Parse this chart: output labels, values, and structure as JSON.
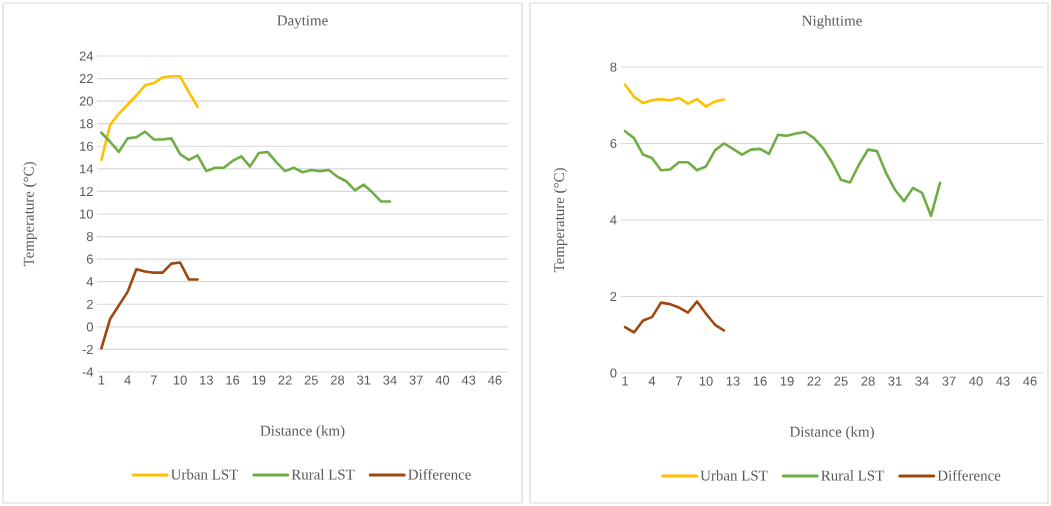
{
  "chart_data": [
    {
      "type": "line",
      "title": "Daytime",
      "xlabel": "Distance (km)",
      "ylabel": "Temperature (°C)",
      "xlim": [
        0.5,
        47.5
      ],
      "xticks": [
        1,
        4,
        7,
        10,
        13,
        16,
        19,
        22,
        25,
        28,
        31,
        34,
        37,
        40,
        43,
        46
      ],
      "ylim": [
        -4,
        24
      ],
      "yticks": [
        -4,
        -2,
        0,
        2,
        4,
        6,
        8,
        10,
        12,
        14,
        16,
        18,
        20,
        22,
        24
      ],
      "grid": "y",
      "legend": "bottom",
      "marker": "none",
      "line_style": "solid",
      "series": [
        {
          "name": "Urban LST",
          "color": "#ffc000",
          "x": [
            1,
            2,
            3,
            4,
            5,
            6,
            7,
            8,
            9,
            10,
            11,
            12
          ],
          "values": [
            14.8,
            17.9,
            18.9,
            19.7,
            20.5,
            21.4,
            21.6,
            22.1,
            22.2,
            22.2,
            20.8,
            19.5
          ]
        },
        {
          "name": "Rural LST",
          "color": "#70ad47",
          "x": [
            1,
            2,
            3,
            4,
            5,
            6,
            7,
            8,
            9,
            10,
            11,
            12,
            13,
            14,
            15,
            16,
            17,
            18,
            19,
            20,
            21,
            22,
            23,
            24,
            25,
            26,
            27,
            28,
            29,
            30,
            31,
            32,
            33,
            34
          ],
          "values": [
            17.2,
            16.4,
            15.5,
            16.7,
            16.8,
            17.3,
            16.6,
            16.6,
            16.7,
            15.3,
            14.8,
            15.2,
            13.8,
            14.1,
            14.1,
            14.7,
            15.1,
            14.2,
            15.4,
            15.5,
            14.6,
            13.8,
            14.1,
            13.7,
            13.9,
            13.8,
            13.9,
            13.3,
            12.9,
            12.1,
            12.6,
            11.9,
            11.1,
            11.1
          ]
        },
        {
          "name": "Difference",
          "color": "#9e480e",
          "x": [
            1,
            2,
            3,
            4,
            5,
            6,
            7,
            8,
            9,
            10,
            11,
            12
          ],
          "values": [
            -1.9,
            0.7,
            1.9,
            3.1,
            5.1,
            4.9,
            4.8,
            4.8,
            5.6,
            5.7,
            4.2,
            4.2
          ]
        }
      ]
    },
    {
      "type": "line",
      "title": "Nighttime",
      "xlabel": "Distance (km)",
      "ylabel": "Temperature (°C)",
      "xlim": [
        0.5,
        47.5
      ],
      "xticks": [
        1,
        4,
        7,
        10,
        13,
        16,
        19,
        22,
        25,
        28,
        31,
        34,
        37,
        40,
        43,
        46
      ],
      "ylim": [
        0,
        8
      ],
      "yticks": [
        0,
        2,
        4,
        6,
        8
      ],
      "grid": "y",
      "legend": "bottom",
      "marker": "none",
      "line_style": "solid",
      "series": [
        {
          "name": "Urban LST",
          "color": "#ffc000",
          "x": [
            1,
            2,
            3,
            4,
            5,
            6,
            7,
            8,
            9,
            10,
            11,
            12
          ],
          "values": [
            7.54,
            7.22,
            7.06,
            7.13,
            7.16,
            7.13,
            7.19,
            7.04,
            7.16,
            6.97,
            7.1,
            7.15
          ]
        },
        {
          "name": "Rural LST",
          "color": "#70ad47",
          "x": [
            1,
            2,
            3,
            4,
            5,
            6,
            7,
            8,
            9,
            10,
            11,
            12,
            13,
            14,
            15,
            16,
            17,
            18,
            19,
            20,
            21,
            22,
            23,
            24,
            25,
            26,
            27,
            28,
            29,
            30,
            31,
            32,
            33,
            34,
            35,
            36
          ],
          "values": [
            6.32,
            6.14,
            5.71,
            5.62,
            5.3,
            5.32,
            5.51,
            5.51,
            5.3,
            5.4,
            5.82,
            6.0,
            5.86,
            5.71,
            5.84,
            5.86,
            5.73,
            6.23,
            6.2,
            6.26,
            6.3,
            6.14,
            5.88,
            5.51,
            5.05,
            4.98,
            5.45,
            5.84,
            5.8,
            5.23,
            4.79,
            4.49,
            4.84,
            4.71,
            4.11,
            4.97
          ]
        },
        {
          "name": "Difference",
          "color": "#9e480e",
          "x": [
            1,
            2,
            3,
            4,
            5,
            6,
            7,
            8,
            9,
            10,
            11,
            12
          ],
          "values": [
            1.2,
            1.06,
            1.37,
            1.46,
            1.84,
            1.8,
            1.71,
            1.58,
            1.87,
            1.55,
            1.26,
            1.11
          ]
        }
      ]
    }
  ]
}
